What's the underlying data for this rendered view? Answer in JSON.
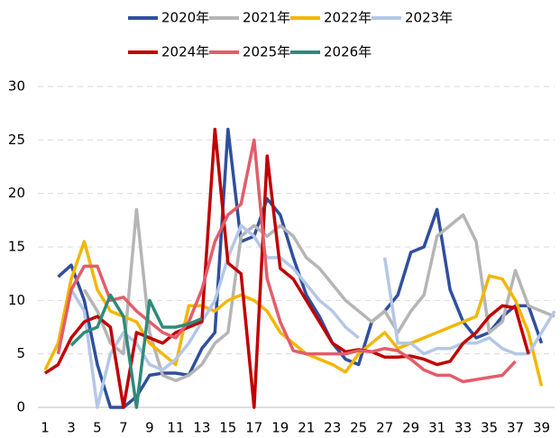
{
  "chart_data": {
    "type": "line",
    "x": [
      1,
      2,
      3,
      4,
      5,
      6,
      7,
      8,
      9,
      10,
      11,
      12,
      13,
      14,
      15,
      16,
      17,
      18,
      19,
      20,
      21,
      22,
      23,
      24,
      25,
      26,
      27,
      28,
      29,
      30,
      31,
      32,
      33,
      34,
      35,
      36,
      37,
      38,
      39,
      40
    ],
    "xlim": [
      1,
      40
    ],
    "xticks": [
      1,
      3,
      5,
      7,
      9,
      11,
      13,
      15,
      17,
      19,
      21,
      23,
      25,
      27,
      29,
      31,
      33,
      35,
      37,
      39
    ],
    "ylim": [
      0,
      30
    ],
    "yticks": [
      0,
      5,
      10,
      15,
      20,
      25,
      30
    ],
    "grid": true,
    "legend": "top",
    "series": [
      {
        "name": "2020年",
        "color": "#2f4f9e",
        "values": [
          null,
          12.2,
          13.3,
          10,
          4,
          0,
          0,
          1,
          3,
          3.2,
          3.2,
          3,
          5.5,
          7,
          26,
          15.5,
          16,
          19.5,
          18,
          14,
          10.5,
          8.5,
          6,
          4.5,
          4,
          8,
          9,
          10.5,
          14.5,
          15,
          18.5,
          11,
          8,
          6.5,
          7,
          8.5,
          9.5,
          9.5,
          6,
          null
        ]
      },
      {
        "name": "2021年",
        "color": "#b5b5b5",
        "values": [
          null,
          null,
          null,
          11,
          9,
          6,
          5,
          18.5,
          7,
          3,
          2.5,
          3,
          4,
          6,
          7,
          16,
          17,
          16,
          17,
          16,
          14,
          13,
          11.5,
          10,
          9,
          8,
          9,
          7,
          9,
          10.5,
          16,
          17,
          18,
          15.5,
          7,
          8,
          12.8,
          9.5,
          9,
          8.5
        ]
      },
      {
        "name": "2022年",
        "color": "#f2b705",
        "values": [
          3.5,
          6,
          12,
          15.5,
          11,
          9,
          8.5,
          8,
          6,
          5,
          4,
          9.5,
          9.5,
          9,
          10,
          10.5,
          10,
          9,
          7,
          6,
          5,
          4.5,
          4,
          3.3,
          5,
          6,
          7,
          5.5,
          6,
          6.5,
          7,
          7.5,
          8,
          8.5,
          12.3,
          12,
          10,
          7,
          2,
          null
        ]
      },
      {
        "name": "2023年",
        "color": "#b4c7e7",
        "values": [
          null,
          null,
          11,
          9,
          0,
          5,
          7,
          6,
          4,
          3.5,
          4.5,
          6,
          8,
          10,
          14,
          17,
          16,
          14,
          14,
          13,
          11.5,
          10,
          9,
          7.5,
          6.5,
          null,
          14,
          6,
          6,
          5,
          5.5,
          5.5,
          6,
          6,
          6.5,
          5.5,
          5,
          5,
          7,
          9
        ]
      },
      {
        "name": "2024年",
        "color": "#c00000",
        "values": [
          3.2,
          4,
          6.5,
          8,
          8.5,
          7.5,
          0,
          7,
          6.5,
          6,
          7,
          7.5,
          8,
          26,
          13.5,
          12.5,
          0,
          23.5,
          13,
          12,
          10,
          8,
          6,
          5.2,
          5.4,
          5.2,
          4.7,
          4.7,
          4.8,
          4.5,
          4,
          4.3,
          6,
          7,
          8.5,
          9.5,
          9.3,
          5,
          null,
          null
        ]
      },
      {
        "name": "2025年",
        "color": "#e35d6a",
        "values": [
          null,
          5,
          11,
          13.2,
          13.2,
          10,
          10.3,
          9,
          8,
          7,
          6.5,
          8,
          11,
          15.5,
          18,
          19,
          25,
          12,
          8,
          5.3,
          5,
          5,
          5,
          5,
          5.3,
          5.2,
          5.5,
          5.3,
          4.5,
          3.5,
          3,
          3,
          2.4,
          2.6,
          2.8,
          3,
          4.3,
          null,
          null,
          null
        ]
      },
      {
        "name": "2026年",
        "color": "#2e8b7a",
        "values": [
          null,
          null,
          5.8,
          7,
          7.5,
          10.5,
          8.5,
          0,
          10,
          7.5,
          7.5,
          7.8,
          8.3,
          null,
          null,
          null,
          null,
          null,
          null,
          null,
          null,
          null,
          null,
          null,
          null,
          null,
          null,
          null,
          null,
          null,
          null,
          null,
          null,
          null,
          null,
          null,
          null,
          null,
          null,
          null
        ]
      }
    ]
  }
}
